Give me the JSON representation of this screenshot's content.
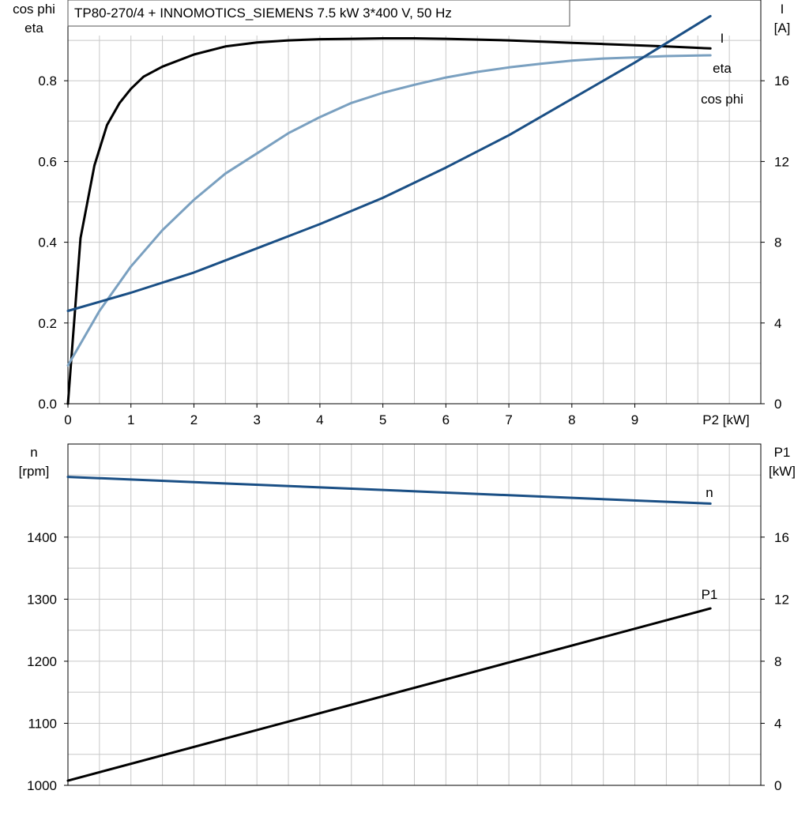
{
  "title": "TP80-270/4 + INNOMOTICS_SIEMENS   7.5 kW   3*400 V, 50 Hz",
  "chart_data": [
    {
      "type": "line",
      "x_label": "P2 [kW]",
      "y_left_label": [
        "cos phi",
        "eta"
      ],
      "y_right_label": [
        "I",
        "[A]"
      ],
      "x_ticks": [
        "0",
        "1",
        "2",
        "3",
        "4",
        "5",
        "6",
        "7",
        "8",
        "9"
      ],
      "y_left_ticks": [
        "0.0",
        "0.2",
        "0.4",
        "0.6",
        "0.8"
      ],
      "y_right_ticks": [
        "0",
        "4",
        "8",
        "12",
        "16"
      ],
      "xlim": [
        0,
        11
      ],
      "ylim_left": [
        0,
        1.0
      ],
      "ylim_right": [
        0,
        20
      ],
      "grid": true,
      "series": [
        {
          "name": "eta",
          "axis": "left",
          "color": "#000000",
          "x": [
            0,
            0.2,
            0.42,
            0.62,
            0.82,
            1.0,
            1.2,
            1.5,
            2.0,
            2.5,
            3.0,
            3.5,
            4.0,
            4.5,
            5.0,
            5.5,
            6.0,
            6.5,
            7.0,
            7.5,
            8.0,
            8.5,
            9.0,
            9.5,
            10.2
          ],
          "y": [
            0.0,
            0.41,
            0.59,
            0.69,
            0.745,
            0.78,
            0.81,
            0.835,
            0.865,
            0.885,
            0.895,
            0.9,
            0.903,
            0.904,
            0.905,
            0.905,
            0.904,
            0.902,
            0.9,
            0.897,
            0.894,
            0.891,
            0.888,
            0.885,
            0.88
          ]
        },
        {
          "name": "cos phi",
          "axis": "left",
          "color": "#7aa0c0",
          "x": [
            0,
            0.5,
            1.0,
            1.5,
            2.0,
            2.5,
            3.0,
            3.5,
            4.0,
            4.5,
            5.0,
            5.5,
            6.0,
            6.5,
            7.0,
            7.5,
            8.0,
            8.5,
            9.0,
            9.5,
            10.2
          ],
          "y": [
            0.095,
            0.23,
            0.34,
            0.43,
            0.505,
            0.57,
            0.62,
            0.67,
            0.71,
            0.745,
            0.77,
            0.79,
            0.808,
            0.822,
            0.833,
            0.842,
            0.85,
            0.855,
            0.858,
            0.861,
            0.863
          ]
        },
        {
          "name": "I",
          "axis": "right",
          "color": "#1a4f85",
          "x": [
            0,
            1.0,
            2.0,
            3.0,
            4.0,
            5.0,
            6.0,
            7.0,
            8.0,
            9.0,
            10.2
          ],
          "y": [
            4.6,
            5.5,
            6.5,
            7.7,
            8.9,
            10.2,
            11.7,
            13.3,
            15.1,
            16.9,
            19.2
          ]
        }
      ]
    },
    {
      "type": "line",
      "x_label": "",
      "y_left_label": [
        "n",
        "[rpm]"
      ],
      "y_right_label": [
        "P1",
        "[kW]"
      ],
      "x_ticks": [],
      "y_left_ticks": [
        "1000",
        "1100",
        "1200",
        "1300",
        "1400"
      ],
      "y_right_ticks": [
        "0",
        "4",
        "8",
        "12",
        "16"
      ],
      "xlim": [
        0,
        11
      ],
      "ylim_left": [
        1000,
        1550
      ],
      "ylim_right": [
        0,
        22
      ],
      "grid": true,
      "series": [
        {
          "name": "n",
          "axis": "left",
          "color": "#1a4f85",
          "x": [
            0,
            10.2
          ],
          "y": [
            1497,
            1454
          ]
        },
        {
          "name": "P1",
          "axis": "right",
          "color": "#000000",
          "x": [
            0,
            10.2
          ],
          "y": [
            0.3,
            11.4
          ]
        }
      ]
    }
  ]
}
